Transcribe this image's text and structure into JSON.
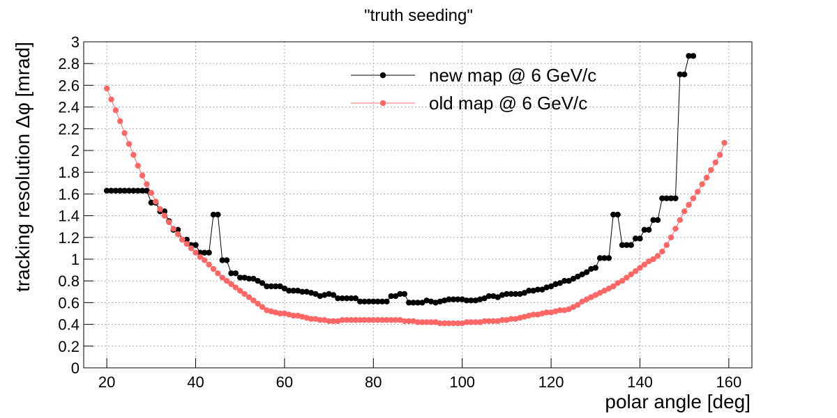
{
  "chart_data": {
    "type": "line",
    "title": "\"truth seeding\"",
    "xlabel": "polar angle [deg]",
    "ylabel": "tracking resolution  Δφ [mrad]",
    "xlim": [
      14.8,
      165.2
    ],
    "ylim": [
      0,
      3
    ],
    "xticks": [
      20,
      40,
      60,
      80,
      100,
      120,
      140,
      160
    ],
    "yticks": [
      0,
      0.2,
      0.4,
      0.6,
      0.8,
      1,
      1.2,
      1.4,
      1.6,
      1.8,
      2,
      2.2,
      2.4,
      2.6,
      2.8,
      3
    ],
    "grid": true,
    "legend": "top-center",
    "x": [
      20,
      21,
      22,
      23,
      24,
      25,
      26,
      27,
      28,
      29,
      30,
      31,
      32,
      33,
      34,
      35,
      36,
      37,
      38,
      39,
      40,
      41,
      42,
      43,
      44,
      45,
      46,
      47,
      48,
      49,
      50,
      51,
      52,
      53,
      54,
      55,
      56,
      57,
      58,
      59,
      60,
      61,
      62,
      63,
      64,
      65,
      66,
      67,
      68,
      69,
      70,
      71,
      72,
      73,
      74,
      75,
      76,
      77,
      78,
      79,
      80,
      81,
      82,
      83,
      84,
      85,
      86,
      87,
      88,
      89,
      90,
      91,
      92,
      93,
      94,
      95,
      96,
      97,
      98,
      99,
      100,
      101,
      102,
      103,
      104,
      105,
      106,
      107,
      108,
      109,
      110,
      111,
      112,
      113,
      114,
      115,
      116,
      117,
      118,
      119,
      120,
      121,
      122,
      123,
      124,
      125,
      126,
      127,
      128,
      129,
      130,
      131,
      132,
      133,
      134,
      135,
      136,
      137,
      138,
      139,
      140,
      141,
      142,
      143,
      144,
      145,
      146,
      147,
      148,
      149,
      150,
      151,
      152,
      153,
      154,
      155,
      156,
      157,
      158,
      159
    ],
    "series": [
      {
        "name": "new map @ 6 GeV/c",
        "color": "#000000",
        "values": [
          1.63,
          1.63,
          1.63,
          1.63,
          1.63,
          1.63,
          1.63,
          1.63,
          1.63,
          1.63,
          1.52,
          1.52,
          1.44,
          1.44,
          1.35,
          1.27,
          1.27,
          1.18,
          1.18,
          1.13,
          1.13,
          1.06,
          1.06,
          1.06,
          1.41,
          1.41,
          0.99,
          0.99,
          0.87,
          0.87,
          0.83,
          0.83,
          0.82,
          0.82,
          0.8,
          0.78,
          0.75,
          0.75,
          0.75,
          0.75,
          0.73,
          0.71,
          0.71,
          0.71,
          0.7,
          0.7,
          0.69,
          0.68,
          0.66,
          0.67,
          0.68,
          0.67,
          0.64,
          0.64,
          0.64,
          0.64,
          0.64,
          0.61,
          0.61,
          0.61,
          0.61,
          0.61,
          0.61,
          0.61,
          0.66,
          0.66,
          0.68,
          0.68,
          0.6,
          0.6,
          0.6,
          0.6,
          0.62,
          0.61,
          0.6,
          0.61,
          0.62,
          0.63,
          0.63,
          0.63,
          0.63,
          0.62,
          0.62,
          0.62,
          0.63,
          0.64,
          0.66,
          0.66,
          0.65,
          0.67,
          0.68,
          0.68,
          0.68,
          0.68,
          0.69,
          0.71,
          0.71,
          0.72,
          0.72,
          0.74,
          0.75,
          0.77,
          0.78,
          0.8,
          0.8,
          0.82,
          0.84,
          0.86,
          0.88,
          0.91,
          0.92,
          1.01,
          1.01,
          1.01,
          1.41,
          1.41,
          1.13,
          1.13,
          1.13,
          1.19,
          1.19,
          1.27,
          1.27,
          1.36,
          1.36,
          1.56,
          1.56,
          1.56,
          1.56,
          2.7,
          2.7,
          2.87,
          2.87,
          null,
          null,
          null,
          null,
          null,
          null,
          null
        ]
      },
      {
        "name": "old map @ 6 GeV/c",
        "color": "#ff6666",
        "values": [
          2.57,
          2.47,
          2.37,
          2.27,
          2.16,
          2.06,
          1.96,
          1.86,
          1.77,
          1.69,
          1.61,
          1.53,
          1.46,
          1.4,
          1.34,
          1.28,
          1.23,
          1.18,
          1.14,
          1.1,
          1.06,
          1.02,
          0.99,
          0.95,
          0.91,
          0.87,
          0.83,
          0.8,
          0.77,
          0.74,
          0.71,
          0.68,
          0.65,
          0.62,
          0.59,
          0.56,
          0.53,
          0.52,
          0.51,
          0.5,
          0.5,
          0.49,
          0.48,
          0.48,
          0.47,
          0.46,
          0.45,
          0.45,
          0.44,
          0.44,
          0.43,
          0.43,
          0.43,
          0.44,
          0.44,
          0.44,
          0.44,
          0.44,
          0.44,
          0.44,
          0.44,
          0.44,
          0.44,
          0.44,
          0.44,
          0.44,
          0.44,
          0.43,
          0.43,
          0.43,
          0.42,
          0.42,
          0.42,
          0.42,
          0.42,
          0.41,
          0.41,
          0.41,
          0.41,
          0.41,
          0.41,
          0.42,
          0.42,
          0.42,
          0.42,
          0.43,
          0.43,
          0.43,
          0.43,
          0.44,
          0.44,
          0.45,
          0.45,
          0.46,
          0.47,
          0.48,
          0.49,
          0.49,
          0.5,
          0.51,
          0.51,
          0.52,
          0.53,
          0.53,
          0.54,
          0.56,
          0.58,
          0.61,
          0.63,
          0.65,
          0.67,
          0.69,
          0.71,
          0.73,
          0.75,
          0.78,
          0.8,
          0.83,
          0.86,
          0.89,
          0.92,
          0.95,
          0.98,
          1.0,
          1.03,
          1.07,
          1.13,
          1.2,
          1.28,
          1.36,
          1.44,
          1.5,
          1.56,
          1.62,
          1.69,
          1.75,
          1.82,
          1.89,
          1.96,
          2.07
        ]
      }
    ]
  }
}
